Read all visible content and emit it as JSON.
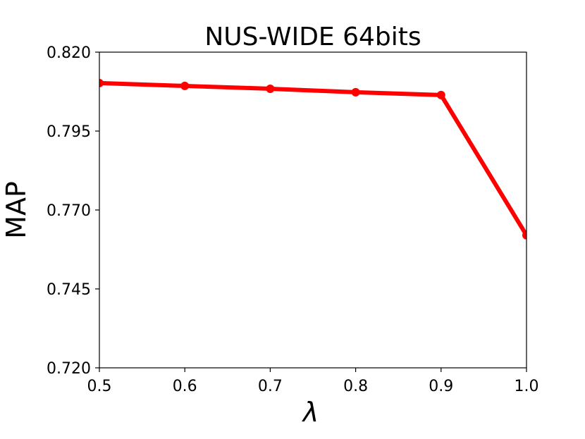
{
  "chart_data": {
    "type": "line",
    "title": "NUS-WIDE 64bits",
    "x_label": "λ",
    "y_label": "MAP",
    "x": [
      0.5,
      0.6,
      0.7,
      0.8,
      0.9,
      1.0
    ],
    "series": [
      {
        "color": "#ff0000",
        "values": [
          0.8102,
          0.8093,
          0.8084,
          0.8073,
          0.8064,
          0.762
        ]
      }
    ],
    "xlim": [
      0.5,
      1.0
    ],
    "xticks": [
      0.5,
      0.6,
      0.7,
      0.8,
      0.9,
      {
        "value": 1.0,
        "label": "1.0"
      }
    ],
    "ylim": [
      0.72,
      0.82
    ],
    "yticks": [
      {
        "value": 0.72,
        "label": "0.720"
      },
      0.745,
      {
        "value": 0.77,
        "label": "0.770"
      },
      0.795,
      {
        "value": 0.82,
        "label": "0.820"
      }
    ],
    "grid": false
  }
}
